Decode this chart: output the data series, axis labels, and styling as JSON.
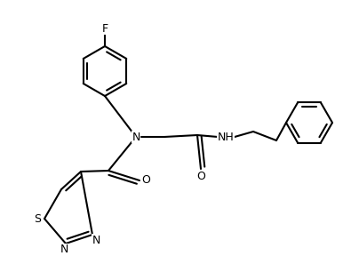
{
  "bg_color": "#ffffff",
  "lw": 1.5,
  "fs": 9.0,
  "figsize": [
    3.86,
    3.06
  ],
  "dpi": 100,
  "xlim": [
    0,
    386
  ],
  "ylim": [
    0,
    306
  ]
}
